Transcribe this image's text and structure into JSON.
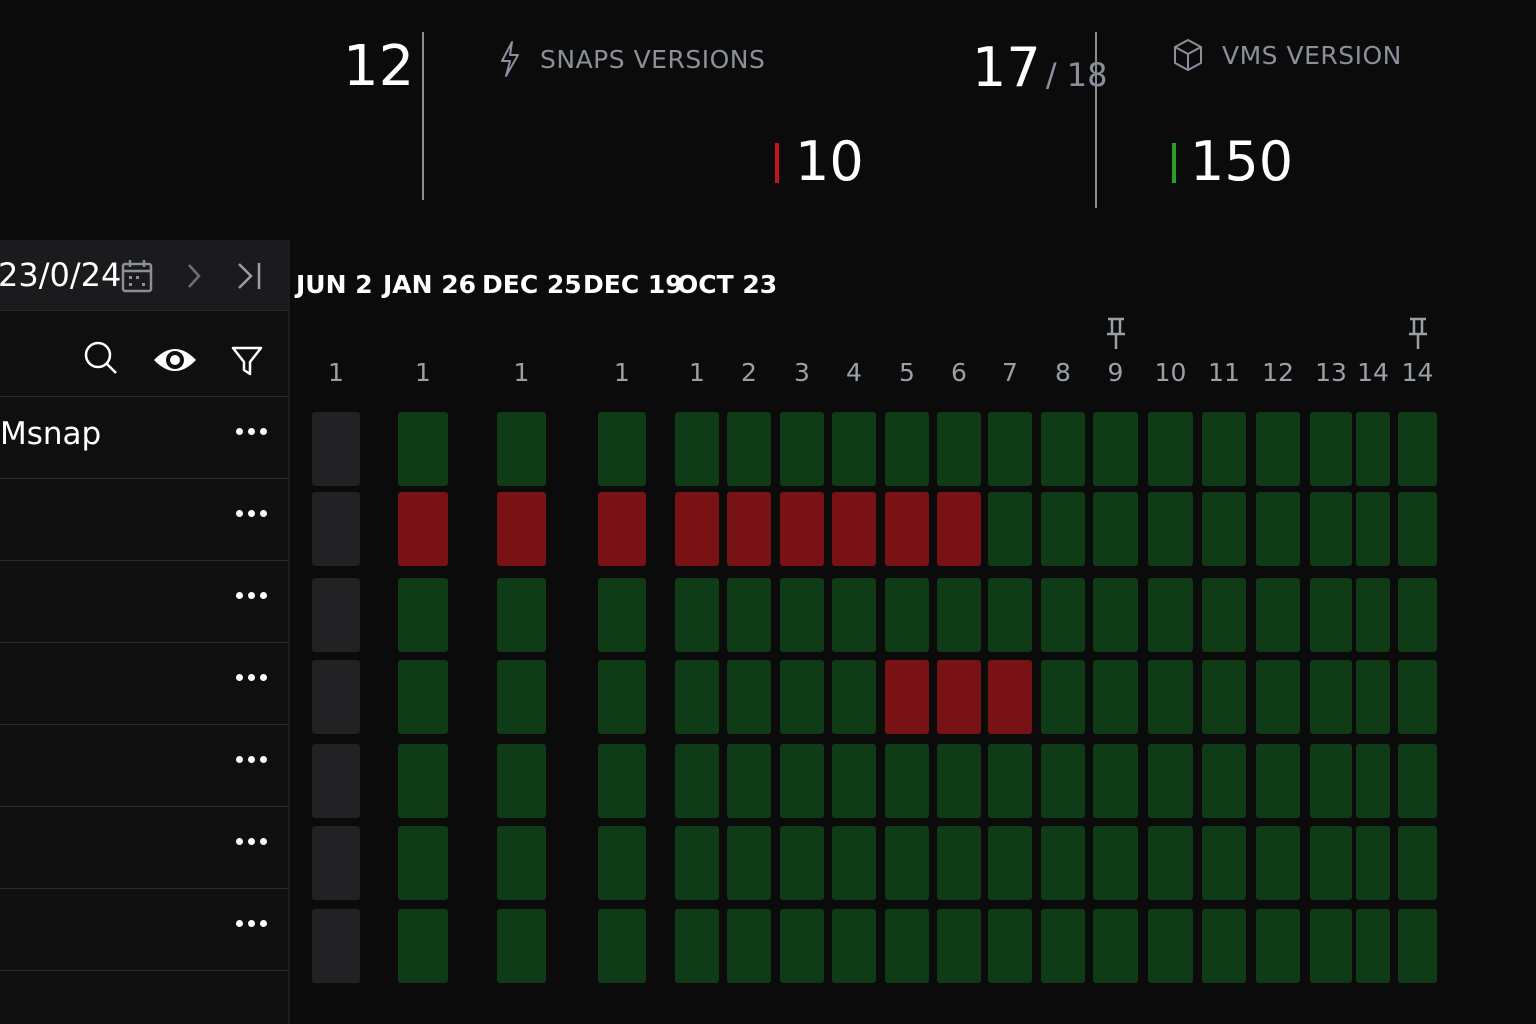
{
  "stats": {
    "left_count": "12",
    "snaps_label": "SNAPS VERSIONS",
    "snaps_current": "17",
    "snaps_total": "/ 18",
    "snaps_alert_value": "10",
    "vms_label": "VMS VERSION",
    "vms_value": "150",
    "alert_color": "#c0161c",
    "ok_color": "#2aa02a"
  },
  "sidebar": {
    "date": "23/0/24",
    "rows": [
      "Msnap",
      "",
      "",
      "",
      "",
      "",
      ""
    ]
  },
  "timeline": {
    "date_headers": [
      "JUN 2",
      "JAN 26",
      "DEC 25",
      "DEC 19",
      "OCT 23"
    ],
    "columns": [
      "1",
      "1",
      "1",
      "1",
      "1",
      "2",
      "3",
      "4",
      "5",
      "6",
      "7",
      "8",
      "9",
      "10",
      "11",
      "12",
      "13",
      "14",
      "14"
    ],
    "pinned_columns": [
      12,
      18
    ],
    "grid": [
      [
        "gray",
        "green",
        "green",
        "green",
        "green",
        "green",
        "green",
        "green",
        "green",
        "green",
        "green",
        "green",
        "green",
        "green",
        "green",
        "green",
        "green",
        "green",
        "green"
      ],
      [
        "gray",
        "red",
        "red",
        "red",
        "red",
        "red",
        "red",
        "red",
        "red",
        "red",
        "green",
        "green",
        "green",
        "green",
        "green",
        "green",
        "green",
        "green",
        "green"
      ],
      [
        "gray",
        "green",
        "green",
        "green",
        "green",
        "green",
        "green",
        "green",
        "green",
        "green",
        "green",
        "green",
        "green",
        "green",
        "green",
        "green",
        "green",
        "green",
        "green"
      ],
      [
        "gray",
        "green",
        "green",
        "green",
        "green",
        "green",
        "green",
        "green",
        "red",
        "red",
        "red",
        "green",
        "green",
        "green",
        "green",
        "green",
        "green",
        "green",
        "green"
      ],
      [
        "gray",
        "green",
        "green",
        "green",
        "green",
        "green",
        "green",
        "green",
        "green",
        "green",
        "green",
        "green",
        "green",
        "green",
        "green",
        "green",
        "green",
        "green",
        "green"
      ],
      [
        "gray",
        "green",
        "green",
        "green",
        "green",
        "green",
        "green",
        "green",
        "green",
        "green",
        "green",
        "green",
        "green",
        "green",
        "green",
        "green",
        "green",
        "green",
        "green"
      ],
      [
        "gray",
        "green",
        "green",
        "green",
        "green",
        "green",
        "green",
        "green",
        "green",
        "green",
        "green",
        "green",
        "green",
        "green",
        "green",
        "green",
        "green",
        "green",
        "green"
      ]
    ]
  },
  "icons": {
    "snaps": "lightning-icon",
    "vms": "cube-icon",
    "calendar": "calendar-icon",
    "next": "chevron-right-icon",
    "last": "skip-to-end-icon",
    "search": "search-icon",
    "view": "eye-icon",
    "filter": "filter-icon",
    "pin": "pin-icon",
    "more": "more-icon"
  }
}
